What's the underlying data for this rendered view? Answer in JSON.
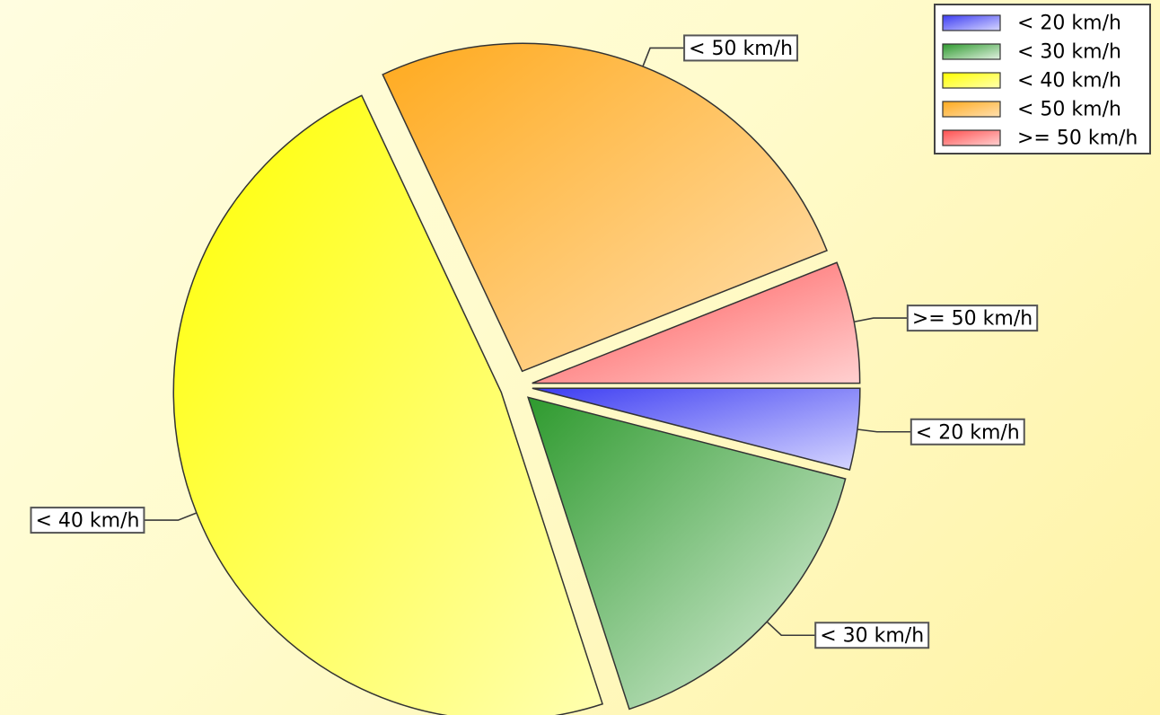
{
  "chart_data": {
    "type": "pie",
    "exploded": true,
    "gradient_fill": true,
    "legend_position": "top-right",
    "slices": [
      {
        "label": "< 20 km/h",
        "value": 4,
        "color": "#3d3df2",
        "light": "#d6d6ff"
      },
      {
        "label": "< 30 km/h",
        "value": 16,
        "color": "#2e9a2e",
        "light": "#e2f2e2"
      },
      {
        "label": "< 40 km/h",
        "value": 48,
        "color": "#ffff00",
        "light": "#ffffb0"
      },
      {
        "label": "< 50 km/h",
        "value": 26,
        "color": "#ffaa1e",
        "light": "#ffe0b0"
      },
      {
        "label": ">= 50 km/h",
        "value": 6,
        "color": "#ff5050",
        "light": "#ffd0d0"
      }
    ]
  }
}
